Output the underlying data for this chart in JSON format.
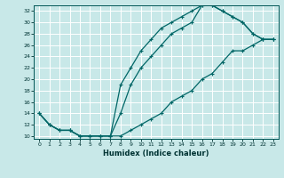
{
  "xlabel": "Humidex (Indice chaleur)",
  "bg_color": "#c8e8e8",
  "grid_color": "#ffffff",
  "line_color": "#006666",
  "xlim": [
    -0.5,
    23.5
  ],
  "ylim": [
    9.5,
    33.0
  ],
  "xticks": [
    0,
    1,
    2,
    3,
    4,
    5,
    6,
    7,
    8,
    9,
    10,
    11,
    12,
    13,
    14,
    15,
    16,
    17,
    18,
    19,
    20,
    21,
    22,
    23
  ],
  "yticks": [
    10,
    12,
    14,
    16,
    18,
    20,
    22,
    24,
    26,
    28,
    30,
    32
  ],
  "line1_x": [
    0,
    1,
    2,
    3,
    4,
    5,
    6,
    7,
    8,
    9,
    10,
    11,
    12,
    13,
    14,
    15,
    16,
    17,
    18,
    19,
    20,
    21,
    22,
    23
  ],
  "line1_y": [
    14,
    12,
    11,
    11,
    10,
    10,
    10,
    10,
    19,
    22,
    25,
    27,
    29,
    30,
    31,
    32,
    33,
    33,
    32,
    31,
    30,
    28,
    27,
    27
  ],
  "line2_x": [
    0,
    1,
    2,
    3,
    4,
    5,
    6,
    7,
    8,
    9,
    10,
    11,
    12,
    13,
    14,
    15,
    16,
    17,
    18,
    19,
    20,
    21,
    22,
    23
  ],
  "line2_y": [
    14,
    12,
    11,
    11,
    10,
    10,
    10,
    10,
    14,
    19,
    22,
    24,
    26,
    28,
    29,
    30,
    33,
    33,
    32,
    31,
    30,
    28,
    27,
    27
  ],
  "line3_x": [
    0,
    1,
    2,
    3,
    4,
    5,
    6,
    7,
    8,
    9,
    10,
    11,
    12,
    13,
    14,
    15,
    16,
    17,
    18,
    19,
    20,
    21,
    22,
    23
  ],
  "line3_y": [
    14,
    12,
    11,
    11,
    10,
    10,
    10,
    10,
    10,
    11,
    12,
    13,
    14,
    16,
    17,
    18,
    20,
    21,
    23,
    25,
    25,
    26,
    27,
    27
  ]
}
